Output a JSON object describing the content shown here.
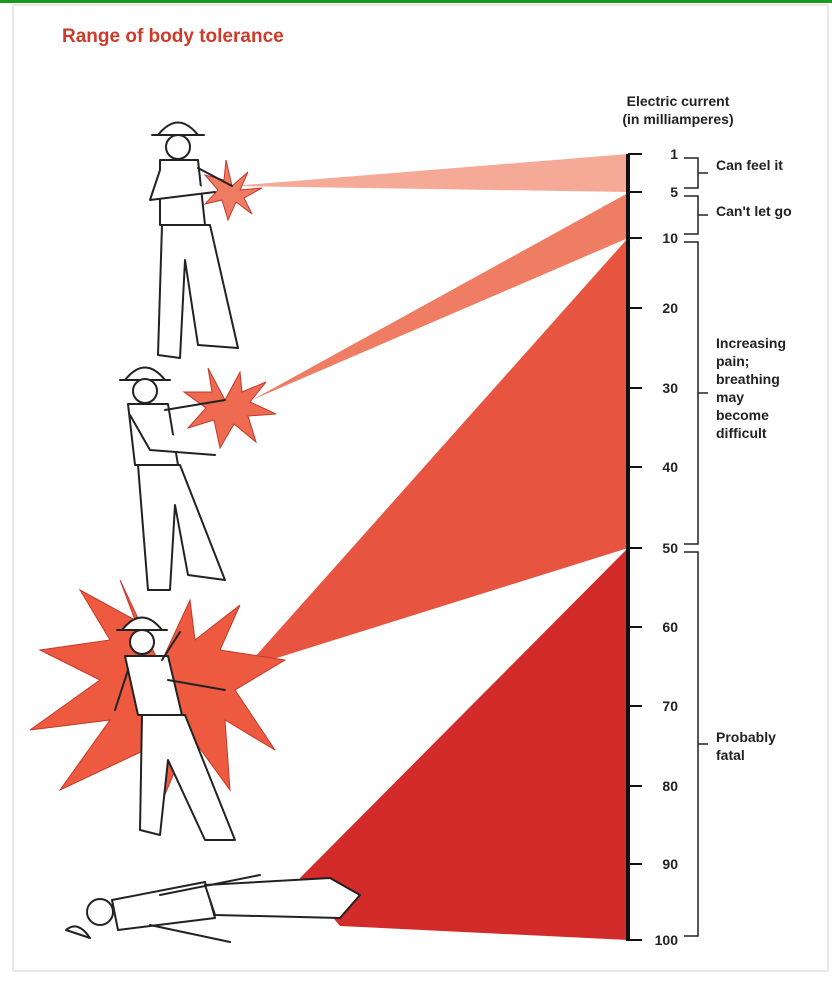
{
  "header": {
    "title": "Range of body tolerance"
  },
  "scale": {
    "label": [
      "Electric current",
      "(in milliamperes)"
    ],
    "ticks": [
      1,
      5,
      10,
      20,
      30,
      40,
      50,
      60,
      70,
      80,
      90,
      100
    ]
  },
  "ranges": [
    {
      "label": [
        "Can feel it"
      ]
    },
    {
      "label": [
        "Can't let go"
      ]
    },
    {
      "label": [
        "Increasing",
        "pain;",
        "breathing",
        "may",
        "become",
        "difficult"
      ]
    },
    {
      "label": [
        "Probably",
        "fatal"
      ]
    }
  ]
}
